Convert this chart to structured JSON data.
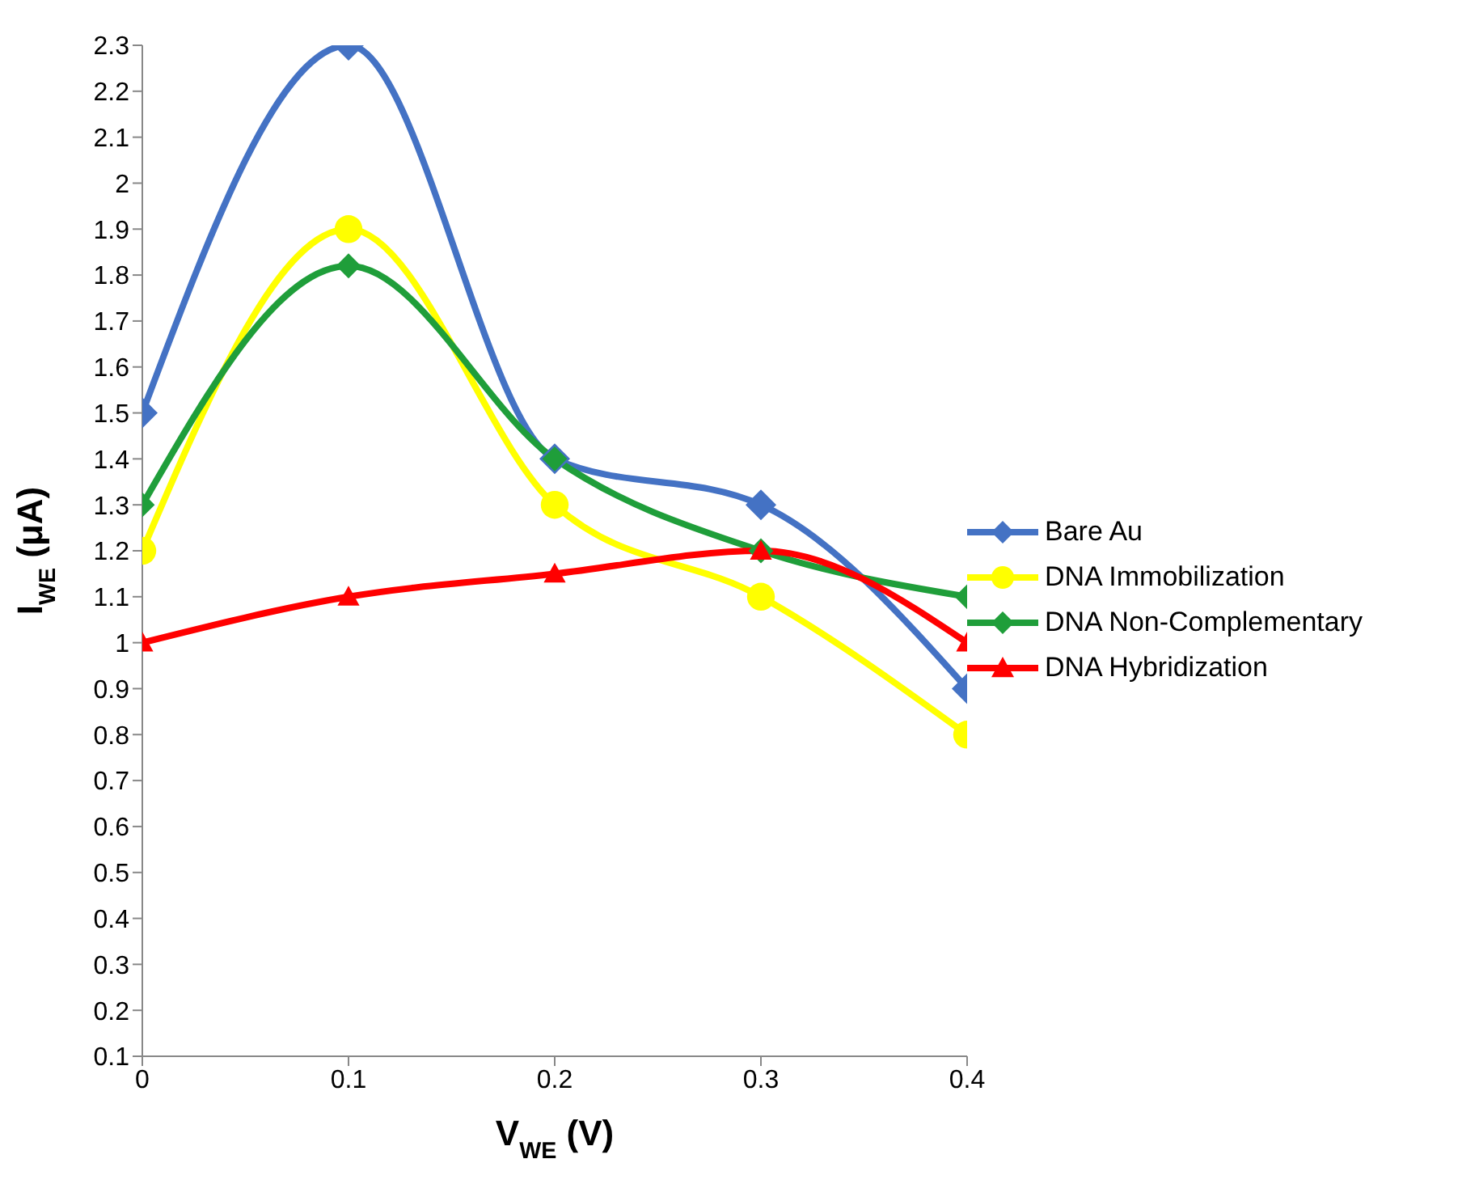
{
  "chart_data": {
    "type": "line",
    "xlabel": "V$_{WE}$ (V)",
    "ylabel": "I$_{WE}$ (μA)",
    "x": [
      0,
      0.1,
      0.2,
      0.3,
      0.4
    ],
    "xlim": [
      0,
      0.4
    ],
    "xticks": [
      0,
      0.1,
      0.2,
      0.3,
      0.4
    ],
    "ylim": [
      0.1,
      2.3
    ],
    "yticks": [
      0.1,
      0.2,
      0.3,
      0.4,
      0.5,
      0.6,
      0.7,
      0.8,
      0.9,
      1,
      1.1,
      1.2,
      1.3,
      1.4,
      1.5,
      1.6,
      1.7,
      1.8,
      1.9,
      2,
      2.1,
      2.2,
      2.3
    ],
    "grid": false,
    "legend": "right",
    "line_style": "solid",
    "series": [
      {
        "name": "Bare Au",
        "color": "#4472c4",
        "marker": "diamond",
        "values": [
          1.5,
          2.3,
          1.4,
          1.3,
          0.9
        ]
      },
      {
        "name": "DNA Immobilization",
        "color": "#ffff00",
        "marker": "circle",
        "values": [
          1.2,
          1.9,
          1.3,
          1.1,
          0.8
        ]
      },
      {
        "name": "DNA Non-Complementary",
        "color": "#1f9e3a",
        "marker": "diamond",
        "values": [
          1.3,
          1.82,
          1.4,
          1.2,
          1.1
        ]
      },
      {
        "name": "DNA Hybridization",
        "color": "#ff0000",
        "marker": "triangle",
        "values": [
          1.0,
          1.1,
          1.15,
          1.2,
          1.0
        ]
      }
    ]
  }
}
